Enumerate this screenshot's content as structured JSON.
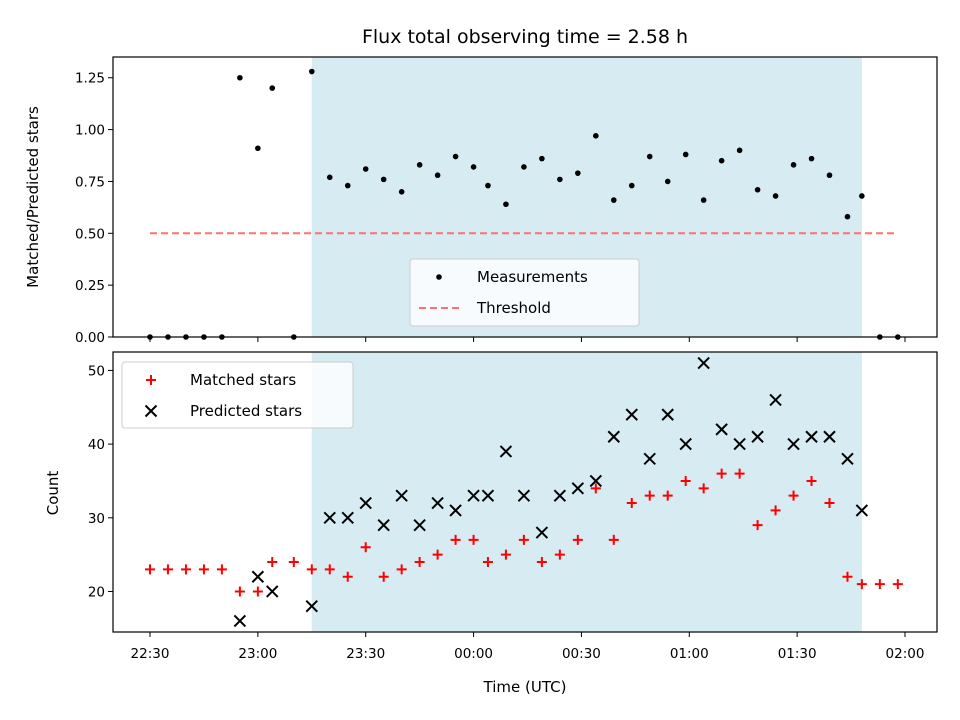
{
  "chart_data": [
    {
      "type": "scatter",
      "title": "Flux total observing time = 2.58 h",
      "xlabel": "",
      "ylabel": "Matched/Predicted stars",
      "ylim": [
        0,
        1.35
      ],
      "yticks": [
        "0.00",
        "0.25",
        "0.50",
        "0.75",
        "1.00",
        "1.25"
      ],
      "shaded_region": {
        "x_start": "23:15",
        "x_end": "01:48",
        "color": "#add8e6"
      },
      "series": [
        {
          "name": "Measurements",
          "marker": "dot",
          "color": "#000000",
          "points": [
            [
              "22:30",
              0.0
            ],
            [
              "22:35",
              0.0
            ],
            [
              "22:40",
              0.0
            ],
            [
              "22:45",
              0.0
            ],
            [
              "22:50",
              0.0
            ],
            [
              "22:55",
              1.25
            ],
            [
              "23:00",
              0.91
            ],
            [
              "23:04",
              1.2
            ],
            [
              "23:10",
              0.0
            ],
            [
              "23:15",
              1.28
            ],
            [
              "23:20",
              0.77
            ],
            [
              "23:25",
              0.73
            ],
            [
              "23:30",
              0.81
            ],
            [
              "23:35",
              0.76
            ],
            [
              "23:40",
              0.7
            ],
            [
              "23:45",
              0.83
            ],
            [
              "23:50",
              0.78
            ],
            [
              "23:55",
              0.87
            ],
            [
              "00:00",
              0.82
            ],
            [
              "00:04",
              0.73
            ],
            [
              "00:09",
              0.64
            ],
            [
              "00:14",
              0.82
            ],
            [
              "00:19",
              0.86
            ],
            [
              "00:24",
              0.76
            ],
            [
              "00:29",
              0.79
            ],
            [
              "00:34",
              0.97
            ],
            [
              "00:39",
              0.66
            ],
            [
              "00:44",
              0.73
            ],
            [
              "00:49",
              0.87
            ],
            [
              "00:54",
              0.75
            ],
            [
              "00:59",
              0.88
            ],
            [
              "01:04",
              0.66
            ],
            [
              "01:09",
              0.85
            ],
            [
              "01:14",
              0.9
            ],
            [
              "01:19",
              0.71
            ],
            [
              "01:24",
              0.68
            ],
            [
              "01:29",
              0.83
            ],
            [
              "01:34",
              0.86
            ],
            [
              "01:39",
              0.78
            ],
            [
              "01:44",
              0.58
            ],
            [
              "01:48",
              0.68
            ],
            [
              "01:53",
              0.0
            ],
            [
              "01:58",
              0.0
            ]
          ]
        },
        {
          "name": "Threshold",
          "style": "dashed",
          "color": "#ff7070",
          "points": [
            [
              "22:30",
              0.5
            ],
            [
              "01:58",
              0.5
            ]
          ]
        }
      ],
      "legend": {
        "placement": "lower-center",
        "entries": [
          "Measurements",
          "Threshold"
        ]
      }
    },
    {
      "type": "scatter",
      "title": "",
      "xlabel": "Time (UTC)",
      "ylabel": "Count",
      "ylim": [
        14.5,
        52.5
      ],
      "yticks": [
        "20",
        "30",
        "40",
        "50"
      ],
      "xticks": [
        "22:30",
        "23:00",
        "23:30",
        "00:00",
        "00:30",
        "01:00",
        "01:30",
        "02:00"
      ],
      "shaded_region": {
        "x_start": "23:15",
        "x_end": "01:48",
        "color": "#add8e6"
      },
      "series": [
        {
          "name": "Matched stars",
          "marker": "plus",
          "color": "#ff0000",
          "points": [
            [
              "22:30",
              23
            ],
            [
              "22:35",
              23
            ],
            [
              "22:40",
              23
            ],
            [
              "22:45",
              23
            ],
            [
              "22:50",
              23
            ],
            [
              "22:55",
              20
            ],
            [
              "23:00",
              20
            ],
            [
              "23:04",
              24
            ],
            [
              "23:10",
              24
            ],
            [
              "23:15",
              23
            ],
            [
              "23:20",
              23
            ],
            [
              "23:25",
              22
            ],
            [
              "23:30",
              26
            ],
            [
              "23:35",
              22
            ],
            [
              "23:40",
              23
            ],
            [
              "23:45",
              24
            ],
            [
              "23:50",
              25
            ],
            [
              "23:55",
              27
            ],
            [
              "00:00",
              27
            ],
            [
              "00:04",
              24
            ],
            [
              "00:09",
              25
            ],
            [
              "00:14",
              27
            ],
            [
              "00:19",
              24
            ],
            [
              "00:24",
              25
            ],
            [
              "00:29",
              27
            ],
            [
              "00:34",
              34
            ],
            [
              "00:39",
              27
            ],
            [
              "00:44",
              32
            ],
            [
              "00:49",
              33
            ],
            [
              "00:54",
              33
            ],
            [
              "00:59",
              35
            ],
            [
              "01:04",
              34
            ],
            [
              "01:09",
              36
            ],
            [
              "01:14",
              36
            ],
            [
              "01:19",
              29
            ],
            [
              "01:24",
              31
            ],
            [
              "01:29",
              33
            ],
            [
              "01:34",
              35
            ],
            [
              "01:39",
              32
            ],
            [
              "01:44",
              22
            ],
            [
              "01:48",
              21
            ],
            [
              "01:53",
              21
            ],
            [
              "01:58",
              21
            ]
          ]
        },
        {
          "name": "Predicted stars",
          "marker": "x",
          "color": "#000000",
          "points": [
            [
              "22:55",
              16
            ],
            [
              "23:00",
              22
            ],
            [
              "23:04",
              20
            ],
            [
              "23:15",
              18
            ],
            [
              "23:20",
              30
            ],
            [
              "23:25",
              30
            ],
            [
              "23:30",
              32
            ],
            [
              "23:35",
              29
            ],
            [
              "23:40",
              33
            ],
            [
              "23:45",
              29
            ],
            [
              "23:50",
              32
            ],
            [
              "23:55",
              31
            ],
            [
              "00:00",
              33
            ],
            [
              "00:04",
              33
            ],
            [
              "00:09",
              39
            ],
            [
              "00:14",
              33
            ],
            [
              "00:19",
              28
            ],
            [
              "00:24",
              33
            ],
            [
              "00:29",
              34
            ],
            [
              "00:34",
              35
            ],
            [
              "00:39",
              41
            ],
            [
              "00:44",
              44
            ],
            [
              "00:49",
              38
            ],
            [
              "00:54",
              44
            ],
            [
              "00:59",
              40
            ],
            [
              "01:04",
              51
            ],
            [
              "01:09",
              42
            ],
            [
              "01:14",
              40
            ],
            [
              "01:19",
              41
            ],
            [
              "01:24",
              46
            ],
            [
              "01:29",
              40
            ],
            [
              "01:34",
              41
            ],
            [
              "01:39",
              41
            ],
            [
              "01:44",
              38
            ],
            [
              "01:48",
              31
            ]
          ]
        }
      ],
      "legend": {
        "placement": "top-left",
        "entries": [
          "Matched stars",
          "Predicted stars"
        ]
      }
    }
  ]
}
